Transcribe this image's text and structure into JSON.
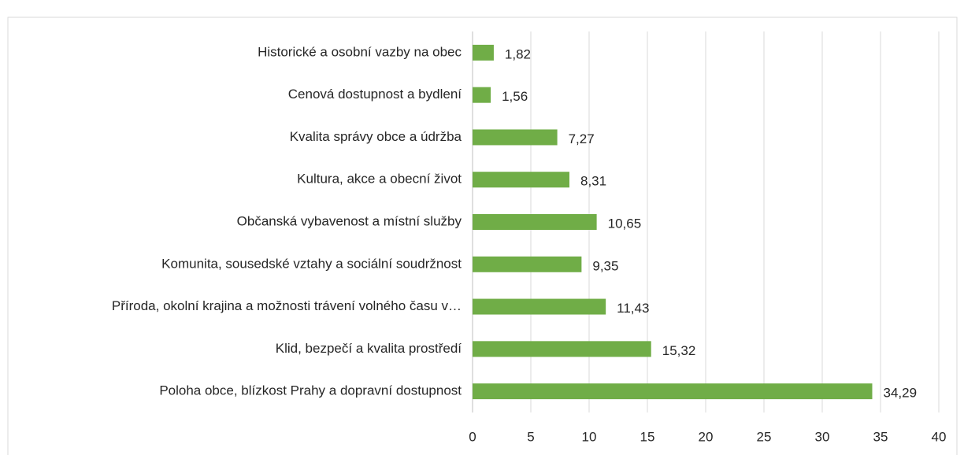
{
  "chart_data": {
    "type": "bar",
    "orientation": "horizontal",
    "categories": [
      "Historické a osobní vazby na obec",
      "Cenová dostupnost a bydlení",
      "Kvalita správy obce a údržba",
      "Kultura, akce a obecní život",
      "Občanská vybavenost a místní služby",
      "Komunita, sousedské vztahy a sociální soudržnost",
      "Příroda, okolní krajina a možnosti trávení volného času v…",
      "Klid, bezpečí a kvalita prostředí",
      "Poloha obce, blízkost Prahy a dopravní dostupnost"
    ],
    "values": [
      1.82,
      1.56,
      7.27,
      8.31,
      10.65,
      9.35,
      11.43,
      15.32,
      34.29
    ],
    "value_labels": [
      "1,82",
      "1,56",
      "7,27",
      "8,31",
      "10,65",
      "9,35",
      "11,43",
      "15,32",
      "34,29"
    ],
    "color": "#70ad47",
    "xlim": [
      0,
      40
    ],
    "xticks": [
      0,
      5,
      10,
      15,
      20,
      25,
      30,
      35,
      40
    ],
    "grid": true
  }
}
